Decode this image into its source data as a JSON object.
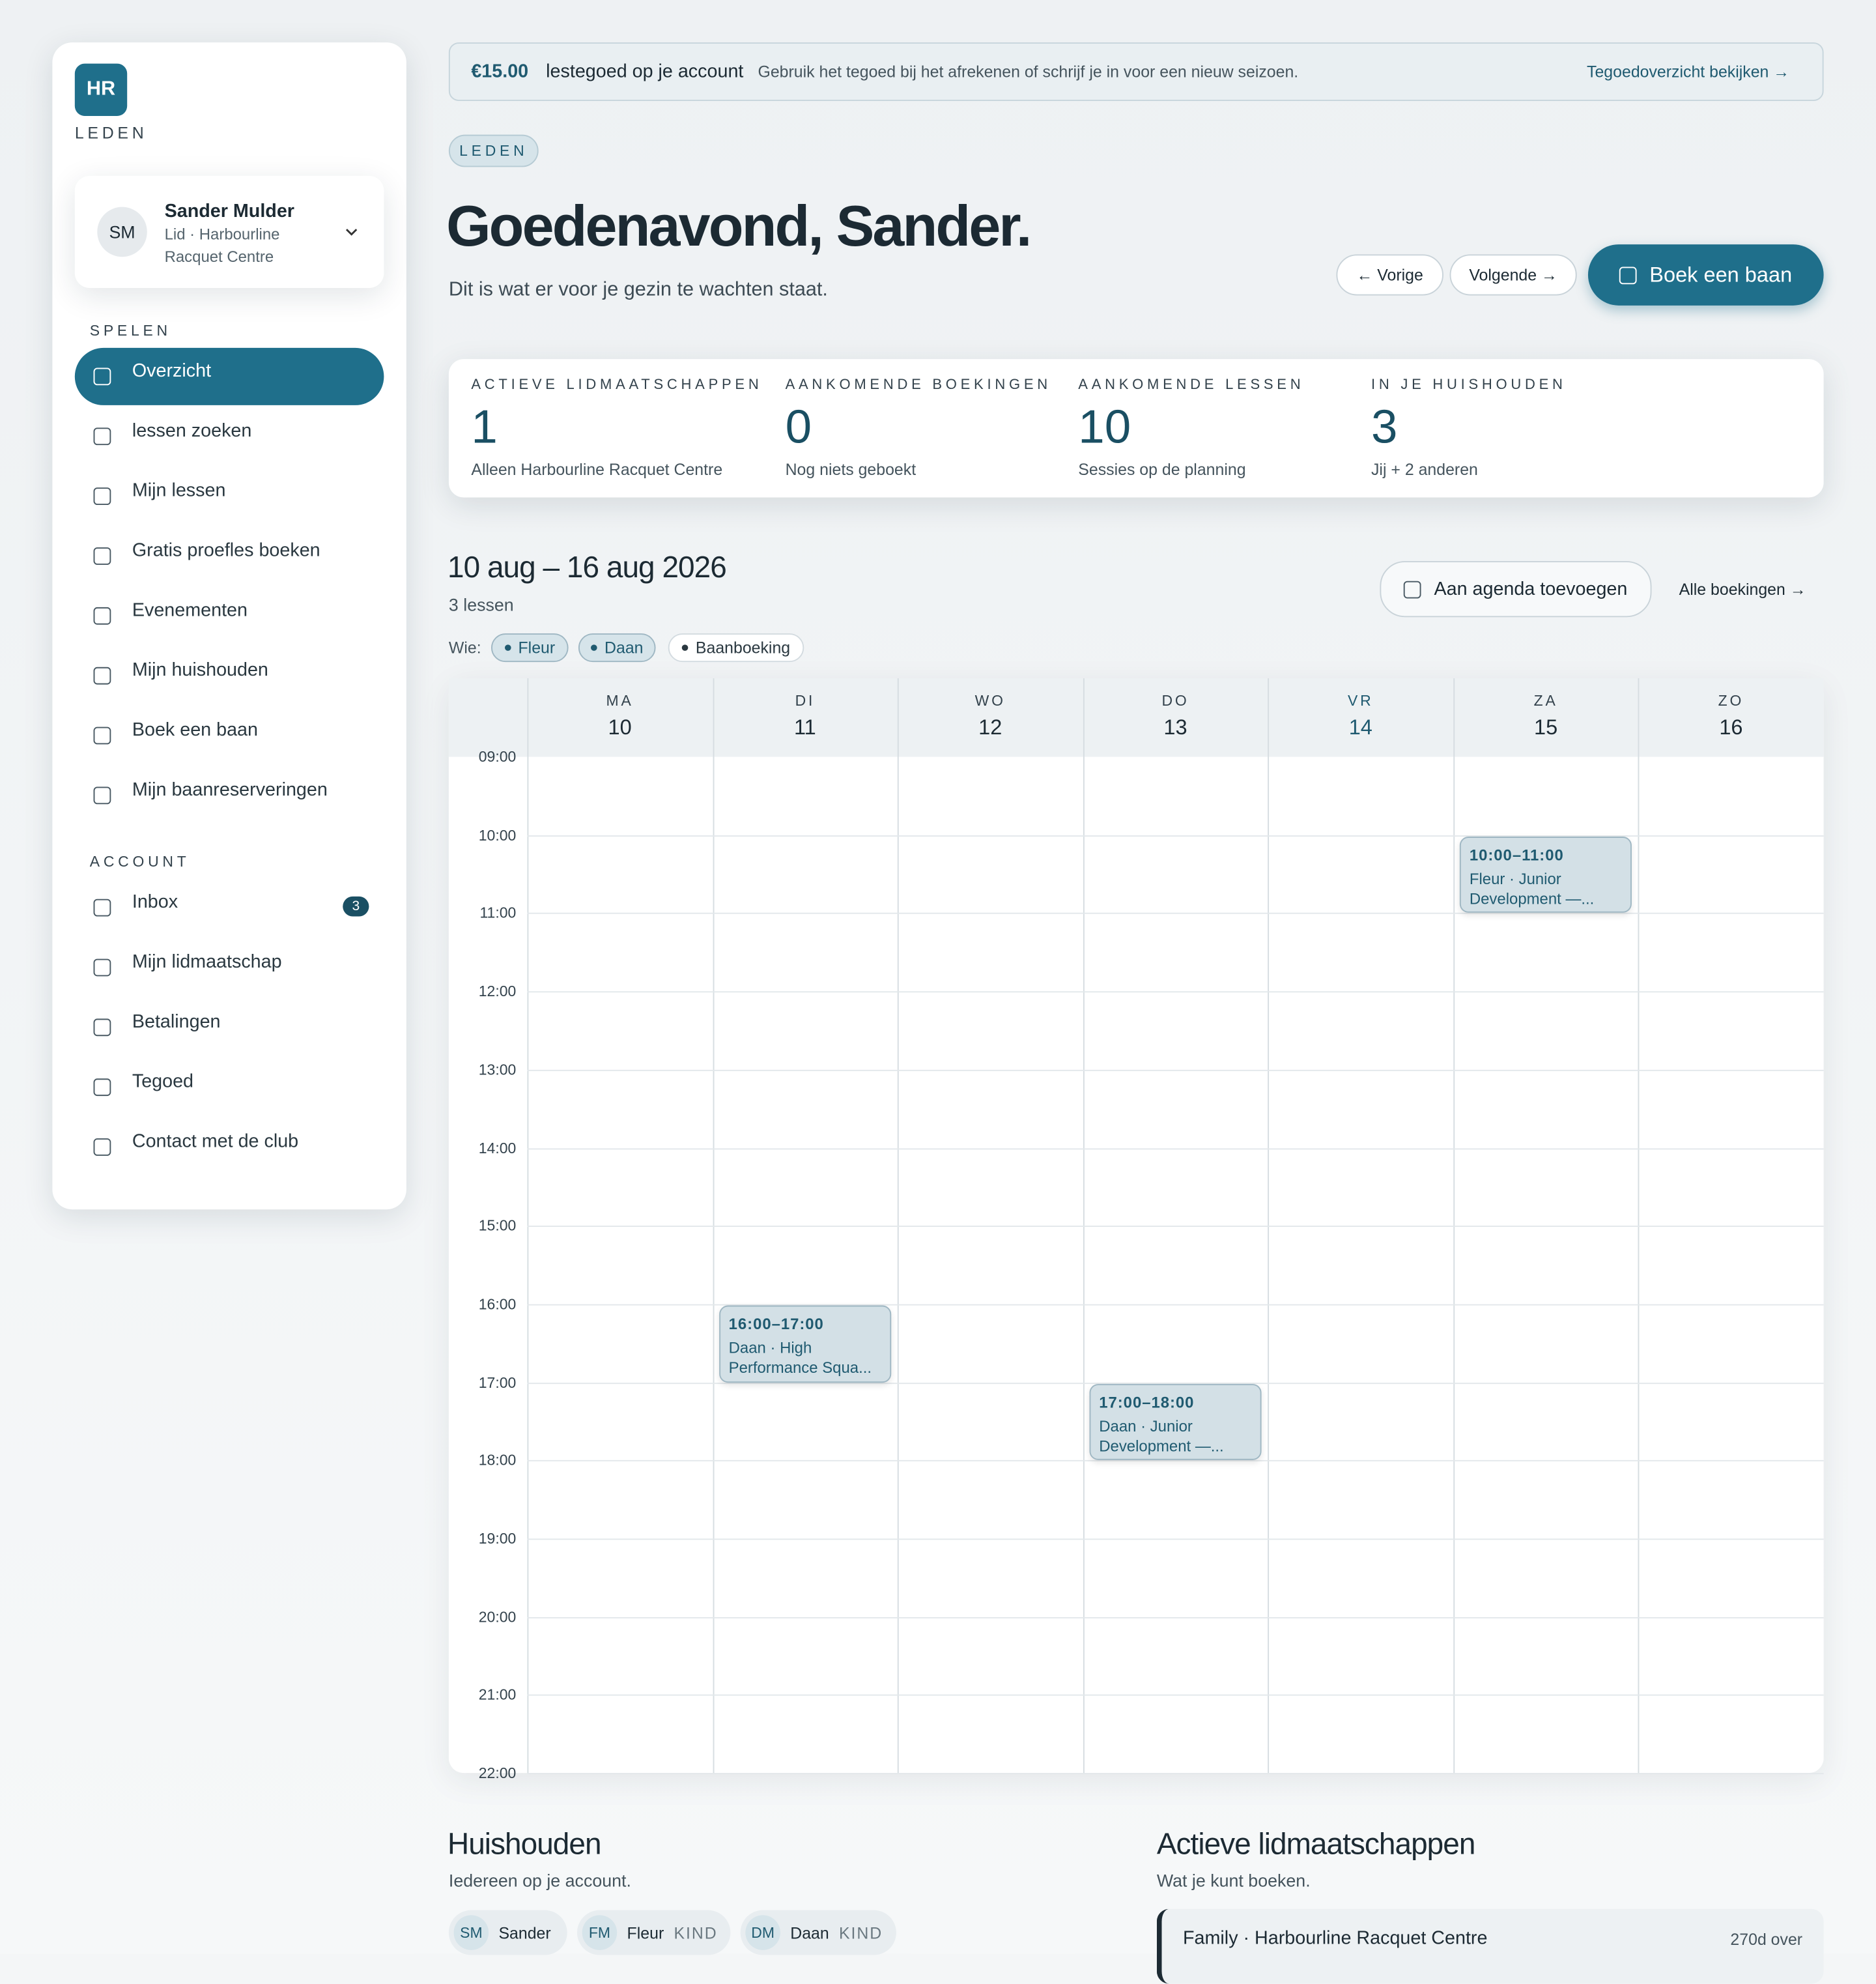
{
  "sidebar": {
    "logo": "HR",
    "brand": "LEDEN",
    "user": {
      "initials": "SM",
      "name": "Sander Mulder",
      "role": "Lid · Harbourline Racquet Centre"
    },
    "sections": [
      {
        "title": "SPELEN",
        "items": [
          "Overzicht",
          "lessen zoeken",
          "Mijn lessen",
          "Gratis proefles boeken",
          "Evenementen",
          "Mijn huishouden",
          "Boek een baan",
          "Mijn baanreserveringen"
        ]
      },
      {
        "title": "ACCOUNT",
        "items": [
          "Inbox",
          "Mijn lidmaatschap",
          "Betalingen",
          "Tegoed",
          "Contact met de club"
        ]
      }
    ],
    "inbox_badge": "3"
  },
  "banner": {
    "amount": "€15.00",
    "label": "lestegoed op je account",
    "text": "Gebruik het tegoed bij het afrekenen of schrijf je in voor een nieuw seizoen.",
    "link": "Tegoedoverzicht bekijken"
  },
  "header": {
    "tag": "LEDEN",
    "title": "Goedenavond, Sander.",
    "subtitle": "Dit is wat er voor je gezin te wachten staat.",
    "prev": "Vorige",
    "next": "Volgende",
    "book": "Boek een baan"
  },
  "stats": [
    {
      "label": "ACTIEVE LIDMAATSCHAPPEN",
      "value": "1",
      "note": "Alleen Harbourline Racquet Centre"
    },
    {
      "label": "AANKOMENDE BOEKINGEN",
      "value": "0",
      "note": "Nog niets geboekt"
    },
    {
      "label": "AANKOMENDE LESSEN",
      "value": "10",
      "note": "Sessies op de planning"
    },
    {
      "label": "IN JE HUISHOUDEN",
      "value": "3",
      "note": "Jij + 2 anderen"
    }
  ],
  "calendar": {
    "range": "10 aug – 16 aug 2026",
    "count": "3 lessen",
    "add": "Aan agenda toevoegen",
    "all": "Alle boekingen",
    "who_label": "Wie:",
    "filters": [
      "Fleur",
      "Daan",
      "Baanboeking"
    ],
    "days": [
      {
        "name": "MA",
        "num": "10"
      },
      {
        "name": "DI",
        "num": "11"
      },
      {
        "name": "WO",
        "num": "12"
      },
      {
        "name": "DO",
        "num": "13"
      },
      {
        "name": "VR",
        "num": "14"
      },
      {
        "name": "ZA",
        "num": "15"
      },
      {
        "name": "ZO",
        "num": "16"
      }
    ],
    "today": 4,
    "hours": [
      "09:00",
      "10:00",
      "11:00",
      "12:00",
      "13:00",
      "14:00",
      "15:00",
      "16:00",
      "17:00",
      "18:00",
      "19:00",
      "20:00",
      "21:00",
      "22:00"
    ],
    "events": [
      {
        "day": 5,
        "start": 10,
        "end": 11,
        "time": "10:00–11:00",
        "title": "Fleur · Junior Development —..."
      },
      {
        "day": 1,
        "start": 16,
        "end": 17,
        "time": "16:00–17:00",
        "title": "Daan · High Performance Squa..."
      },
      {
        "day": 3,
        "start": 17,
        "end": 18,
        "time": "17:00–18:00",
        "title": "Daan · Junior Development —..."
      }
    ]
  },
  "household": {
    "title": "Huishouden",
    "subtitle": "Iedereen op je account.",
    "members": [
      {
        "initials": "SM",
        "name": "Sander"
      },
      {
        "initials": "FM",
        "name": "Fleur",
        "role": "KIND"
      },
      {
        "initials": "DM",
        "name": "Daan",
        "role": "KIND"
      }
    ]
  },
  "memberships": {
    "title": "Actieve lidmaatschappen",
    "subtitle": "Wat je kunt boeken.",
    "items": [
      {
        "name": "Family · Harbourline Racquet Centre",
        "remaining": "270d over"
      }
    ]
  }
}
